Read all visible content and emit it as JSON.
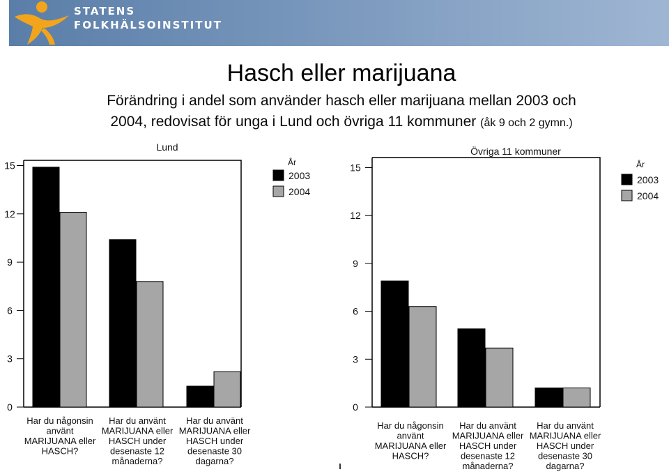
{
  "header": {
    "org_line1": "STATENS",
    "org_line2": "FOLKHÄLSOINSTITUT",
    "brand_color": "#f2a51a",
    "bar_color": "#6f8fb4"
  },
  "title": "Hasch eller marijuana",
  "subtitle": {
    "line1": "Förändring i andel som använder hasch eller marijuana mellan 2003 och",
    "line2_main": "2004, redovisat för unga i Lund och övriga 11 kommuner",
    "line2_small": "(åk 9 och 2 gymn.)"
  },
  "chart_data": [
    {
      "type": "bar",
      "title": "Lund",
      "legend_title": "År",
      "categories": [
        [
          "Har du någonsin",
          "använt",
          "MARIJUANA eller",
          "HASCH?"
        ],
        [
          "Har du använt",
          "MARIJUANA eller",
          "HASCH under",
          "desenaste 12",
          "månaderna?"
        ],
        [
          "Har du använt",
          "MARIJUANA eller",
          "HASCH under",
          "desenaste 30",
          "dagarna?"
        ]
      ],
      "series": [
        {
          "name": "2003",
          "color": "#000000",
          "values": [
            14.9,
            10.4,
            1.3
          ]
        },
        {
          "name": "2004",
          "color": "#a6a6a6",
          "values": [
            12.1,
            7.8,
            2.2
          ]
        }
      ],
      "ylim": [
        0,
        15
      ],
      "yticks": [
        0,
        3,
        6,
        9,
        12,
        15
      ],
      "xlabel": "",
      "ylabel": ""
    },
    {
      "type": "bar",
      "title": "Övriga 11 kommuner",
      "legend_title": "År",
      "categories": [
        [
          "Har du någonsin",
          "använt",
          "MARIJUANA eller",
          "HASCH?"
        ],
        [
          "Har du använt",
          "MARIJUANA eller",
          "HASCH under",
          "desenaste 12",
          "månaderna?"
        ],
        [
          "Har du använt",
          "MARIJUANA eller",
          "HASCH under",
          "desenaste 30",
          "dagarna?"
        ]
      ],
      "series": [
        {
          "name": "2003",
          "color": "#000000",
          "values": [
            7.9,
            4.9,
            1.2
          ]
        },
        {
          "name": "2004",
          "color": "#a6a6a6",
          "values": [
            6.3,
            3.7,
            1.2
          ]
        }
      ],
      "ylim": [
        0,
        15
      ],
      "yticks": [
        0,
        3,
        6,
        9,
        12,
        15
      ],
      "xlabel": "",
      "ylabel": ""
    }
  ]
}
